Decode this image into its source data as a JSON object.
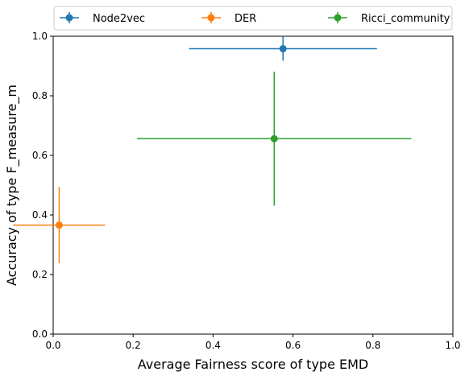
{
  "chart_data": {
    "type": "scatter",
    "error_bars": true,
    "xlabel": "Average Fairness score of type EMD",
    "ylabel": "Accuracy of type F_measure_m",
    "xlim": [
      0.0,
      1.0
    ],
    "ylim": [
      0.0,
      1.0
    ],
    "xticks": [
      "0.0",
      "0.2",
      "0.4",
      "0.6",
      "0.8",
      "1.0"
    ],
    "yticks": [
      "0.0",
      "0.2",
      "0.4",
      "0.6",
      "0.8",
      "1.0"
    ],
    "grid": false,
    "legend_position": "top, above plot, 3 columns",
    "series": [
      {
        "name": "Node2vec",
        "color": "#1f77b4",
        "x": 0.575,
        "y": 0.958,
        "xerr": 0.235,
        "yerr": 0.04
      },
      {
        "name": "DER",
        "color": "#ff7f0e",
        "x": 0.015,
        "y": 0.366,
        "xerr": 0.115,
        "yerr": 0.128
      },
      {
        "name": "Ricci_community",
        "color": "#2ca02c",
        "x": 0.553,
        "y": 0.656,
        "xerr": 0.343,
        "yerr": 0.225
      }
    ]
  }
}
